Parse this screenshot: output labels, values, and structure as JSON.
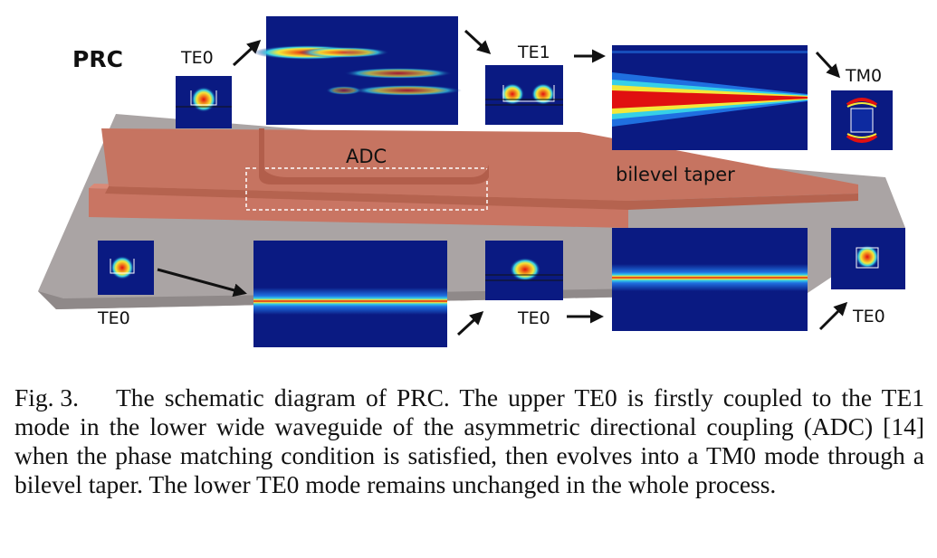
{
  "figure": {
    "panel_label": "PRC",
    "labels": {
      "adc": "ADC",
      "taper": "bilevel taper",
      "upper_input_mode": "TE0",
      "upper_coupled_mode": "TE1",
      "upper_output_mode": "TM0",
      "lower_input_mode": "TE0",
      "lower_mid_mode": "TE0",
      "lower_output_mode": "TE0"
    },
    "colors": {
      "substrate": "#a9a3a3",
      "waveguide": "#c97563",
      "field_background": "#0a1a82",
      "field_peak": "#e01010"
    }
  },
  "caption": {
    "number": "Fig. 3.",
    "text": "The schematic diagram of PRC. The upper TE0 is firstly coupled to the TE1 mode in the lower wide waveguide of the asymmetric directional coupling (ADC) [14] when the phase matching condition is satisfied, then evolves into a TM0 mode through a bilevel taper. The lower TE0 mode remains unchanged in the whole process."
  }
}
